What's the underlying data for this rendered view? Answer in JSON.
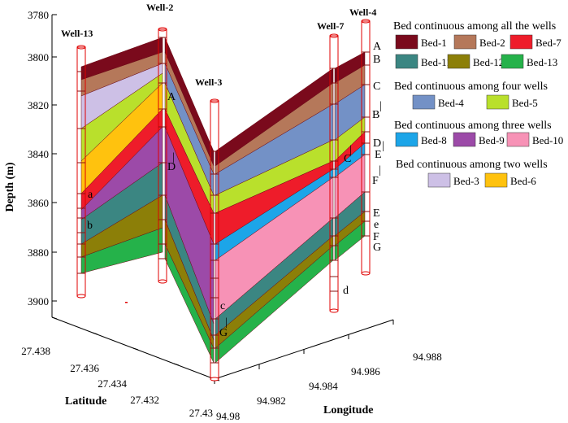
{
  "axes": {
    "z_label": "Depth (m)",
    "x_label": "Longitude",
    "y_label": "Latitude",
    "z_ticks": [
      "3780",
      "3800",
      "3820",
      "3840",
      "3860",
      "3880",
      "3900"
    ],
    "x_ticks": [
      "94.98",
      "94.982",
      "94.984",
      "94.986",
      "94.988"
    ],
    "y_ticks": [
      "27.438",
      "27.436",
      "27.434",
      "27.432",
      "27.43"
    ]
  },
  "wells": {
    "w13": "Well-13",
    "w2": "Well-2",
    "w3": "Well-3",
    "w7": "Well-7",
    "w4": "Well-4"
  },
  "markers": {
    "A": "A",
    "A_prime": "A",
    "B": "B",
    "C": "C",
    "B_prime": "B",
    "C_prime": "C",
    "D": "D",
    "D_prime": "D",
    "E_prime": "E",
    "F_prime": "F",
    "E": "E",
    "e": "e",
    "F": "F",
    "G": "G",
    "G_prime": "G",
    "a": "a",
    "b": "b",
    "c": "c",
    "d": "d"
  },
  "legend": {
    "all_title": "Bed continuous among all the wells",
    "four_title": "Bed continuous among four wells",
    "three_title": "Bed continuous among three wells",
    "two_title": "Bed continuous among two wells",
    "items": {
      "bed1": {
        "label": "Bed-1",
        "color": "#7a0a1c"
      },
      "bed2": {
        "label": "Bed-2",
        "color": "#b5785a"
      },
      "bed3": {
        "label": "Bed-3",
        "color": "#cdc0e6"
      },
      "bed4": {
        "label": "Bed-4",
        "color": "#7391c6"
      },
      "bed5": {
        "label": "Bed-5",
        "color": "#b9e02c"
      },
      "bed6": {
        "label": "Bed-6",
        "color": "#ffc20e"
      },
      "bed7": {
        "label": "Bed-7",
        "color": "#ee1c2a"
      },
      "bed8": {
        "label": "Bed-8",
        "color": "#1ca5e8"
      },
      "bed9": {
        "label": "Bed-9",
        "color": "#9c4aa8"
      },
      "bed10": {
        "label": "Bed-10",
        "color": "#f792b6"
      },
      "bed11": {
        "label": "Bed-11",
        "color": "#3b8682"
      },
      "bed12": {
        "label": "Bed-12",
        "color": "#8c7f08"
      },
      "bed13": {
        "label": "Bed-13",
        "color": "#25b24a"
      }
    }
  }
}
